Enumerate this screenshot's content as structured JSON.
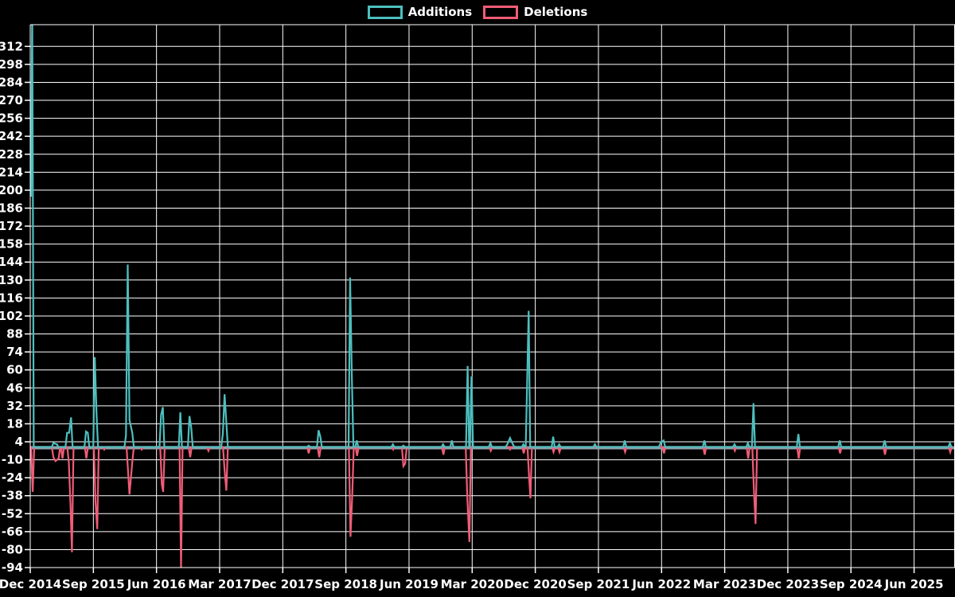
{
  "legend": {
    "items": [
      {
        "label": "Additions",
        "color": "#4dbfbf"
      },
      {
        "label": "Deletions",
        "color": "#f05c77"
      }
    ]
  },
  "chart_data": {
    "type": "line",
    "title": "",
    "background": "#000000",
    "grid_color": "#ffffff",
    "text_color": "#ffffff",
    "grid": "on",
    "legend_position": "top-center",
    "zero_line": {
      "value": 0,
      "color": "#8fa1aa"
    },
    "y_axis": {
      "tick_step": 14,
      "plot_top_value": 329,
      "plot_bottom_value": -94,
      "tick_values": [
        312,
        298,
        284,
        270,
        256,
        242,
        228,
        214,
        200,
        186,
        172,
        158,
        144,
        130,
        116,
        102,
        88,
        74,
        60,
        46,
        32,
        18,
        4,
        -10,
        -24,
        -38,
        -52,
        -66,
        -80,
        -94
      ]
    },
    "x_axis": {
      "months_between_ticks": 9,
      "tick_labels": [
        "Dec 2014",
        "Sep 2015",
        "Jun 2016",
        "Mar 2017",
        "Dec 2017",
        "Sep 2018",
        "Jun 2019",
        "Mar 2020",
        "Dec 2020",
        "Sep 2021",
        "Jun 2022",
        "Mar 2023",
        "Dec 2023",
        "Sep 2024",
        "Jun 2025"
      ]
    },
    "x_unit": "months_since_Dec_2014",
    "series": [
      {
        "name": "Additions",
        "color": "#4dbfbf",
        "points": [
          [
            0.1,
            195
          ],
          [
            0.28,
            340
          ],
          [
            3.3,
            3
          ],
          [
            3.8,
            2
          ],
          [
            5.25,
            11
          ],
          [
            5.55,
            11
          ],
          [
            5.82,
            23
          ],
          [
            7.95,
            12
          ],
          [
            8.2,
            11
          ],
          [
            9.2,
            70
          ],
          [
            9.45,
            26
          ],
          [
            13.65,
            9
          ],
          [
            13.9,
            142
          ],
          [
            14.15,
            21
          ],
          [
            14.55,
            11
          ],
          [
            18.65,
            25
          ],
          [
            18.9,
            31
          ],
          [
            21.4,
            27
          ],
          [
            22.7,
            24
          ],
          [
            22.95,
            15
          ],
          [
            27.45,
            10
          ],
          [
            27.7,
            41
          ],
          [
            27.95,
            19
          ],
          [
            39.7,
            1
          ],
          [
            41.1,
            13
          ],
          [
            41.35,
            8
          ],
          [
            45.6,
            132
          ],
          [
            45.85,
            55
          ],
          [
            46.55,
            5
          ],
          [
            51.7,
            2
          ],
          [
            53.2,
            1
          ],
          [
            58.85,
            2
          ],
          [
            60.1,
            5
          ],
          [
            62.35,
            63
          ],
          [
            62.9,
            55
          ],
          [
            65.6,
            3
          ],
          [
            68.0,
            2
          ],
          [
            68.4,
            7
          ],
          [
            68.8,
            2
          ],
          [
            70.3,
            2
          ],
          [
            70.85,
            54
          ],
          [
            71.05,
            106
          ],
          [
            74.55,
            8
          ],
          [
            75.4,
            2
          ],
          [
            80.5,
            2
          ],
          [
            84.75,
            5
          ],
          [
            89.85,
            3
          ],
          [
            90.3,
            5
          ],
          [
            96.1,
            5
          ],
          [
            100.4,
            2
          ],
          [
            102.3,
            3
          ],
          [
            103.1,
            34
          ],
          [
            109.5,
            10
          ],
          [
            115.4,
            5
          ],
          [
            121.8,
            5
          ],
          [
            131.1,
            3
          ]
        ]
      },
      {
        "name": "Deletions",
        "color": "#f05c77",
        "points": [
          [
            0.35,
            -35
          ],
          [
            3.3,
            -8
          ],
          [
            3.6,
            -11
          ],
          [
            4.05,
            -9
          ],
          [
            4.6,
            -9
          ],
          [
            5.5,
            -12
          ],
          [
            5.75,
            -47
          ],
          [
            5.95,
            -82
          ],
          [
            8.0,
            -9
          ],
          [
            9.3,
            -43
          ],
          [
            9.55,
            -64
          ],
          [
            10.55,
            -2
          ],
          [
            13.95,
            -20
          ],
          [
            14.15,
            -37
          ],
          [
            14.55,
            -12
          ],
          [
            15.9,
            -2
          ],
          [
            18.75,
            -29
          ],
          [
            18.95,
            -35
          ],
          [
            21.5,
            -95
          ],
          [
            22.8,
            -8
          ],
          [
            25.4,
            -3
          ],
          [
            27.7,
            -18
          ],
          [
            27.95,
            -34
          ],
          [
            39.7,
            -5
          ],
          [
            41.2,
            -8
          ],
          [
            45.65,
            -70
          ],
          [
            45.9,
            -38
          ],
          [
            46.6,
            -7
          ],
          [
            51.75,
            -2
          ],
          [
            53.2,
            -15
          ],
          [
            53.45,
            -13
          ],
          [
            58.9,
            -6
          ],
          [
            62.3,
            -38
          ],
          [
            62.6,
            -74
          ],
          [
            65.65,
            -3
          ],
          [
            68.4,
            -2
          ],
          [
            70.35,
            -5
          ],
          [
            71.1,
            -22
          ],
          [
            71.3,
            -40
          ],
          [
            74.6,
            -4
          ],
          [
            75.45,
            -4
          ],
          [
            84.8,
            -4
          ],
          [
            90.35,
            -5
          ],
          [
            96.15,
            -6
          ],
          [
            100.45,
            -3
          ],
          [
            102.35,
            -9
          ],
          [
            103.15,
            -32
          ],
          [
            103.4,
            -60
          ],
          [
            109.55,
            -9
          ],
          [
            115.45,
            -5
          ],
          [
            121.85,
            -6
          ],
          [
            131.15,
            -4
          ]
        ]
      }
    ]
  }
}
